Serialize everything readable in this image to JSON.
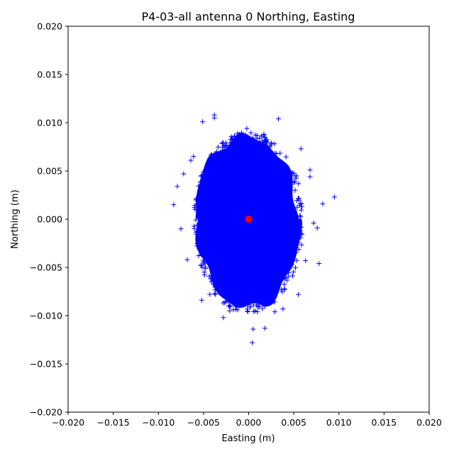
{
  "chart_data": {
    "type": "scatter",
    "title": "P4-03-all antenna 0 Northing, Easting",
    "xlabel": "Easting (m)",
    "ylabel": "Northing (m)",
    "xlim": [
      -0.02,
      0.02
    ],
    "ylim": [
      -0.02,
      0.02
    ],
    "xticks": [
      "−0.020",
      "−0.015",
      "−0.010",
      "−0.005",
      "0.000",
      "0.005",
      "0.010",
      "0.015",
      "0.020"
    ],
    "yticks": [
      "−0.020",
      "−0.015",
      "−0.010",
      "−0.005",
      "0.000",
      "0.005",
      "0.010",
      "0.015",
      "0.020"
    ],
    "grid": false,
    "series": [
      {
        "marker": "+",
        "color": "#0000ff",
        "points": [
          [
            0.0095,
            0.0023
          ],
          [
            0.0082,
            0.0016
          ],
          [
            0.0078,
            -0.0046
          ],
          [
            0.0076,
            -0.0009
          ],
          [
            -0.0083,
            0.0015
          ],
          [
            -0.0079,
            0.0034
          ],
          [
            -0.0075,
            -0.001
          ],
          [
            -0.0072,
            0.0047
          ],
          [
            -0.0051,
            0.0101
          ],
          [
            -0.0038,
            0.0108
          ],
          [
            -0.0038,
            0.0105
          ],
          [
            0.0033,
            0.0104
          ],
          [
            0.0017,
            0.0088
          ],
          [
            -0.0002,
            0.0094
          ],
          [
            -0.0052,
            -0.0084
          ],
          [
            -0.0043,
            -0.0078
          ],
          [
            0.0055,
            -0.0078
          ],
          [
            -0.0028,
            -0.0102
          ],
          [
            -0.0021,
            -0.0095
          ],
          [
            0.0004,
            -0.0128
          ],
          [
            0.0005,
            -0.0114
          ],
          [
            0.0018,
            -0.0113
          ],
          [
            0.0038,
            -0.0093
          ],
          [
            0.0029,
            -0.0096
          ],
          [
            0.0072,
            -0.0004
          ],
          [
            0.0068,
            0.0044
          ],
          [
            0.0063,
            -0.0043
          ],
          [
            -0.0064,
            0.0061
          ],
          [
            -0.0068,
            -0.0042
          ],
          [
            0.0068,
            0.0051
          ],
          [
            -0.0061,
            0.0065
          ],
          [
            0.0058,
            0.0073
          ]
        ]
      },
      {
        "marker": "o",
        "color": "#ff0000",
        "points": [
          [
            0.0,
            0.0
          ]
        ]
      }
    ],
    "legend": "none"
  }
}
